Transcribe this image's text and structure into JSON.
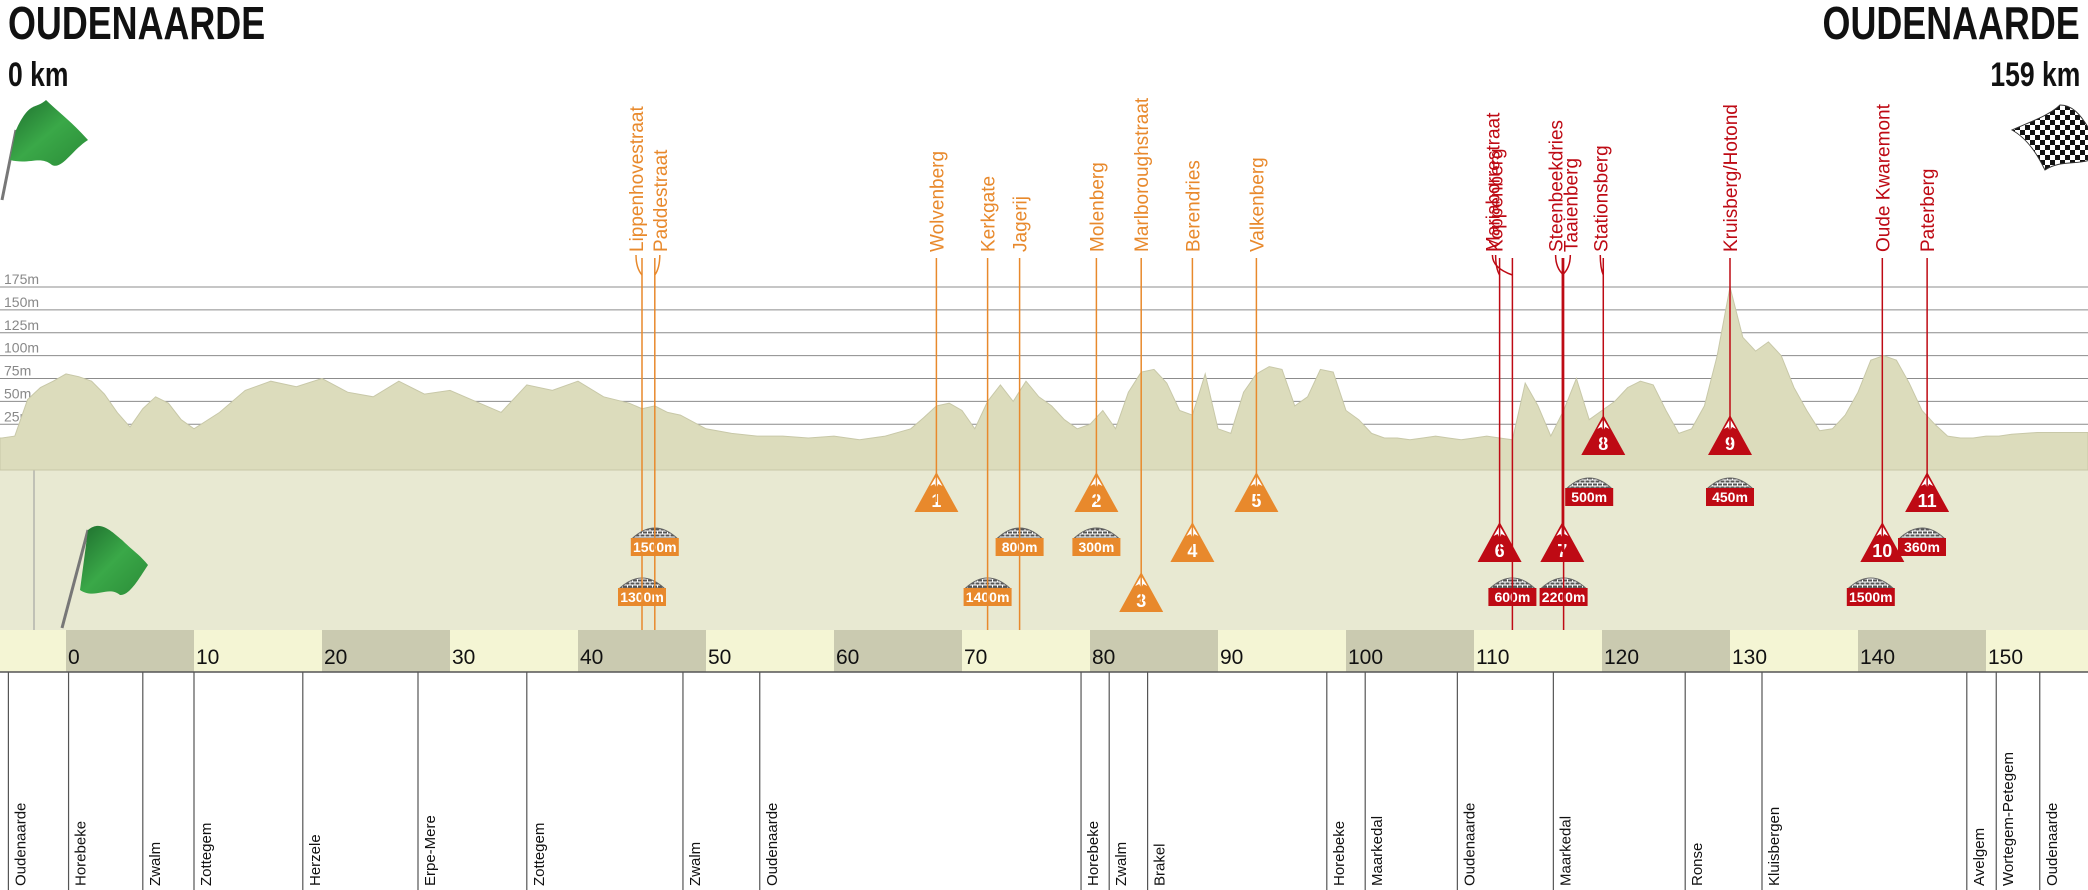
{
  "start": {
    "town": "OUDENAARDE",
    "distance": "0 km"
  },
  "finish": {
    "town": "OUDENAARDE",
    "distance": "159 km"
  },
  "altitude_labels": [
    "175m",
    "150m",
    "125m",
    "100m",
    "75m",
    "50m",
    "25m"
  ],
  "km_labels": [
    "0",
    "10",
    "20",
    "30",
    "40",
    "50",
    "60",
    "70",
    "80",
    "90",
    "100",
    "110",
    "120",
    "130",
    "140",
    "150"
  ],
  "climbs": [
    {
      "name": "Wolvenberg",
      "num": "1",
      "km": 68.0,
      "row": 0,
      "category": "orange"
    },
    {
      "name": "Molenberg",
      "num": "2",
      "km": 80.5,
      "row": 0,
      "category": "orange"
    },
    {
      "name": "Marlboroughstraat",
      "num": "3",
      "km": 84.0,
      "row": 2,
      "category": "orange"
    },
    {
      "name": "Berendries",
      "num": "4",
      "km": 88.0,
      "row": 1,
      "category": "orange"
    },
    {
      "name": "Valkenberg",
      "num": "5",
      "km": 93.0,
      "row": 0,
      "category": "orange"
    },
    {
      "name": "Koppenberg",
      "num": "6",
      "km": 112.0,
      "row": 1,
      "category": "red"
    },
    {
      "name": "Taaienberg",
      "num": "7",
      "km": 116.9,
      "row": 1,
      "category": "red"
    },
    {
      "name": "Stationsberg",
      "num": "8",
      "km": 120.1,
      "row": -1,
      "category": "red"
    },
    {
      "name": "Kruisberg/Hotond",
      "num": "9",
      "km": 130.0,
      "row": -1,
      "category": "red"
    },
    {
      "name": "Oude Kwaremont",
      "num": "10",
      "km": 141.9,
      "row": 1,
      "category": "red"
    },
    {
      "name": "Paterberg",
      "num": "11",
      "km": 145.4,
      "row": 0,
      "category": "red"
    }
  ],
  "sectors": [
    {
      "name": "Lippenhovestraat",
      "length": "1300m",
      "km": 45.0,
      "row": 2,
      "category": "orange"
    },
    {
      "name": "Paddestraat",
      "length": "1500m",
      "km": 46.0,
      "row": 1,
      "category": "orange"
    },
    {
      "name": "Kerkgate",
      "length": "1400m",
      "km": 72.0,
      "row": 2,
      "category": "orange"
    },
    {
      "name": "Jagerij",
      "length": "800m",
      "km": 74.5,
      "row": 1,
      "category": "orange"
    },
    {
      "name": "Mariaborrestraat",
      "length": "600m",
      "km": 113.0,
      "row": 2,
      "category": "red"
    },
    {
      "name": "Steenbeekdries",
      "length": "2200m",
      "km": 117.0,
      "row": 2,
      "category": "red"
    },
    {
      "name": "Stationsberg",
      "length": "500m",
      "km": 119.0,
      "row": 0,
      "category": "red"
    },
    {
      "name": "Kruisberg/Hotond",
      "length": "450m",
      "km": 130.0,
      "row": 0,
      "category": "red"
    },
    {
      "name": "Oude Kwaremont",
      "length": "1500m",
      "km": 141.0,
      "row": 2,
      "category": "red"
    },
    {
      "name": "Paterberg",
      "length": "360m",
      "km": 145.0,
      "row": 1,
      "category": "red"
    }
  ],
  "extra_sector_badges": [
    {
      "length": "300m",
      "km": 80.5,
      "row": 1
    }
  ],
  "places": [
    {
      "name": "Oudenaarde",
      "km": -4.5
    },
    {
      "name": "Horebeke",
      "km": 0.2
    },
    {
      "name": "Zwalm",
      "km": 6.0
    },
    {
      "name": "Zottegem",
      "km": 10.0
    },
    {
      "name": "Herzele",
      "km": 18.5
    },
    {
      "name": "Erpe-Mere",
      "km": 27.5
    },
    {
      "name": "Zottegem",
      "km": 36.0
    },
    {
      "name": "Zwalm",
      "km": 48.2
    },
    {
      "name": "Oudenaarde",
      "km": 54.2
    },
    {
      "name": "Horebeke",
      "km": 79.3
    },
    {
      "name": "Zwalm",
      "km": 81.5
    },
    {
      "name": "Brakel",
      "km": 84.5
    },
    {
      "name": "Horebeke",
      "km": 98.5
    },
    {
      "name": "Maarkedal",
      "km": 101.5
    },
    {
      "name": "Oudenaarde",
      "km": 108.7
    },
    {
      "name": "Maarkedal",
      "km": 116.2
    },
    {
      "name": "Ronse",
      "km": 126.5
    },
    {
      "name": "Kluisbergen",
      "km": 132.5
    },
    {
      "name": "Avelgem",
      "km": 148.5
    },
    {
      "name": "Wortegem-Petegem",
      "km": 150.8
    },
    {
      "name": "Oudenaarde",
      "km": 154.2
    }
  ],
  "colors": {
    "terrain_upper": "#dcdcbc",
    "terrain_lower": "#e8e9d2",
    "km_band_light": "#f4f5d4",
    "km_band_dark": "#cacab0",
    "climb_orange": "#e8892c",
    "climb_red": "#be0a14",
    "grid": "#8c8c8c",
    "start_flag": "#2f9a3a"
  },
  "chart_data": {
    "type": "area",
    "title": "",
    "xlabel": "",
    "ylabel": "",
    "x_unit": "km",
    "ylim": [
      0,
      175
    ],
    "x": [
      -5,
      -4,
      -3,
      -2,
      -1,
      0,
      1,
      2,
      3,
      4,
      5,
      6,
      7,
      8,
      9,
      10,
      12,
      14,
      16,
      18,
      20,
      22,
      24,
      26,
      28,
      30,
      32,
      34,
      36,
      38,
      40,
      42,
      44,
      45,
      46,
      47,
      48,
      50,
      52,
      54,
      56,
      58,
      60,
      62,
      64,
      66,
      67,
      68,
      69,
      70,
      71,
      72,
      73,
      74,
      75,
      76,
      77,
      78,
      79,
      80,
      81,
      82,
      83,
      84,
      85,
      86,
      87,
      88,
      89,
      90,
      91,
      92,
      93,
      94,
      95,
      96,
      97,
      98,
      99,
      100,
      101,
      102,
      103,
      104,
      105,
      106,
      107,
      108,
      109,
      110,
      111,
      112,
      113,
      114,
      115,
      116,
      117,
      118,
      119,
      120,
      121,
      122,
      123,
      124,
      125,
      126,
      127,
      128,
      129,
      130,
      131,
      132,
      133,
      134,
      135,
      136,
      137,
      138,
      139,
      140,
      141,
      142,
      143,
      144,
      145,
      146,
      147,
      148,
      149,
      150,
      151,
      152,
      153,
      154
    ],
    "y": [
      10,
      12,
      52,
      65,
      72,
      80,
      77,
      72,
      58,
      38,
      22,
      42,
      55,
      48,
      30,
      20,
      38,
      62,
      72,
      66,
      75,
      60,
      55,
      72,
      58,
      62,
      50,
      38,
      68,
      62,
      72,
      55,
      48,
      42,
      45,
      38,
      35,
      20,
      15,
      12,
      12,
      10,
      12,
      8,
      12,
      20,
      32,
      45,
      48,
      40,
      20,
      50,
      68,
      50,
      72,
      55,
      45,
      30,
      20,
      25,
      40,
      20,
      60,
      82,
      85,
      70,
      40,
      35,
      80,
      20,
      15,
      60,
      80,
      88,
      85,
      45,
      55,
      85,
      82,
      40,
      30,
      15,
      10,
      10,
      8,
      10,
      12,
      10,
      8,
      10,
      12,
      10,
      8,
      70,
      45,
      12,
      40,
      75,
      30,
      40,
      50,
      65,
      72,
      68,
      40,
      15,
      20,
      45,
      100,
      175,
      120,
      105,
      115,
      100,
      65,
      40,
      18,
      20,
      35,
      60,
      95,
      100,
      95,
      70,
      40,
      25,
      12,
      10,
      10,
      12,
      12,
      14,
      15,
      16
    ]
  }
}
